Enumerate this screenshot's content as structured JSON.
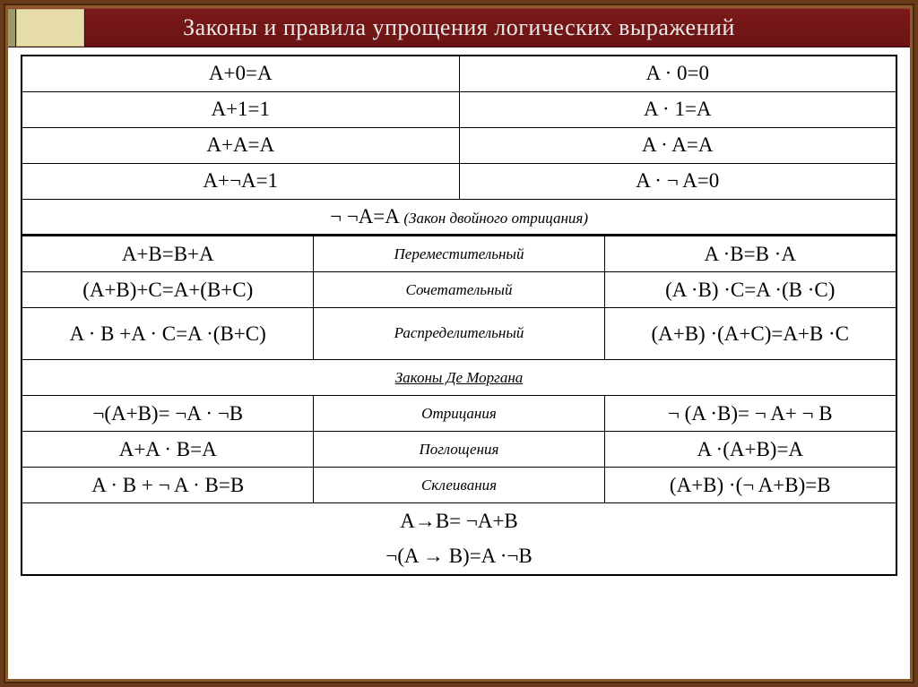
{
  "title": "Законы и правила упрощения логических выражений",
  "basic": [
    {
      "left": "A+0=A",
      "right": "A · 0=0"
    },
    {
      "left": "A+1=1",
      "right": "A · 1=A"
    },
    {
      "left": "A+A=A",
      "right": "A · A=A"
    },
    {
      "left": "A+¬A=1",
      "right": "A · ¬ A=0"
    }
  ],
  "double_neg": {
    "expr": "¬ ¬A=A",
    "note": "(Закон двойного отрицания)"
  },
  "laws": [
    {
      "left": "A+B=B+A",
      "label": "Переместительный",
      "right": "A ·B=B ·A"
    },
    {
      "left": "(A+B)+C=A+(B+C)",
      "label": "Сочетательный",
      "right": "(A ·B) ·C=A ·(B ·C)"
    },
    {
      "left": "A · B +A · C=A ·(B+C)",
      "label": "Распределительный",
      "right": "(A+B) ·(A+C)=A+B ·C"
    }
  ],
  "de_morgan_header": "Законы Де Моргана",
  "de_morgan": [
    {
      "left": "¬(A+B)= ¬A · ¬B",
      "label": "Отрицания",
      "right": "¬ (A ·B)= ¬ A+ ¬ B"
    },
    {
      "left": "A+A · B=A",
      "label": "Поглощения",
      "right": "A ·(A+B)=A"
    },
    {
      "left": "A · B + ¬ A · B=B",
      "label": "Склеивания",
      "right": "(A+B) ·(¬ A+B)=B"
    }
  ],
  "bottom": {
    "line1": "A→B= ¬A+B",
    "line2": "¬(A → B)=A ·¬B"
  },
  "colors": {
    "page_bg": "#6b3a1a",
    "frame_bg": "#8b5a2b",
    "title_bg": "#6b1414",
    "title_fg": "#e8e8e8",
    "accent_box": "#e5dca8",
    "border": "#000000"
  },
  "font": {
    "family": "Times New Roman",
    "body_size": 23,
    "title_size": 26,
    "label_size": 17
  }
}
